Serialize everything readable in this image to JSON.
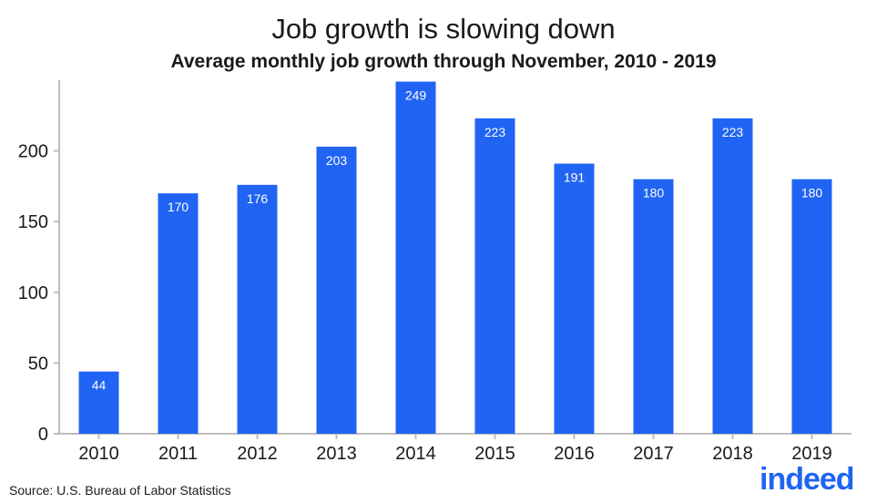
{
  "chart_data": {
    "type": "bar",
    "title": "Job growth is slowing down",
    "subtitle": "Average monthly job growth through November, 2010 - 2019",
    "categories": [
      "2010",
      "2011",
      "2012",
      "2013",
      "2014",
      "2015",
      "2016",
      "2017",
      "2018",
      "2019"
    ],
    "values": [
      44,
      170,
      176,
      203,
      249,
      223,
      191,
      180,
      223,
      180
    ],
    "ylim": [
      0,
      250
    ],
    "yticks": [
      0,
      50,
      100,
      150,
      200
    ],
    "xlabel": "",
    "ylabel": "",
    "grid": false,
    "bar_color": "#2164f3",
    "label_color": "#ffffff"
  },
  "source": "Source: U.S. Bureau of Labor Statistics",
  "logo": {
    "text": "indeed",
    "color": "#2164f3"
  }
}
